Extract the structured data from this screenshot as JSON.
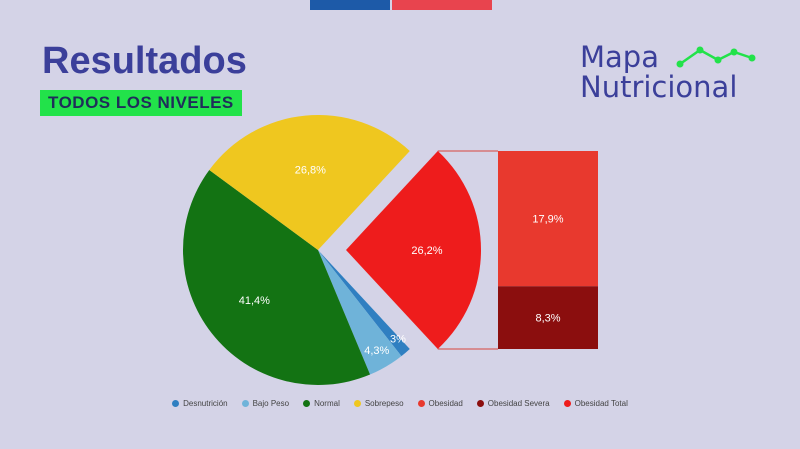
{
  "header": {
    "title": "Resultados",
    "subtitle": "TODOS LOS NIVELES"
  },
  "logo": {
    "line1": "Mapa",
    "line2": "Nutricional",
    "accent_color": "#22e24a"
  },
  "chart_data": {
    "type": "pie",
    "title": "",
    "slices": [
      {
        "name": "Desnutrición",
        "value": 1.3,
        "label": "1,3%",
        "color": "#2f7fc1"
      },
      {
        "name": "Bajo Peso",
        "value": 4.3,
        "label": "4,3%",
        "color": "#6fb3d9"
      },
      {
        "name": "Normal",
        "value": 41.4,
        "label": "41,4%",
        "color": "#137313"
      },
      {
        "name": "Sobrepeso",
        "value": 26.8,
        "label": "26,8%",
        "color": "#efc71f"
      },
      {
        "name": "Obesidad Total",
        "value": 26.2,
        "label": "26,2%",
        "color": "#ee1c1c",
        "exploded": true
      }
    ],
    "breakdown": {
      "of": "Obesidad Total",
      "segments": [
        {
          "name": "Obesidad",
          "value": 17.9,
          "label": "17,9%",
          "color": "#e8392e"
        },
        {
          "name": "Obesidad Severa",
          "value": 8.3,
          "label": "8,3%",
          "color": "#8b0e0e"
        }
      ]
    },
    "legend": [
      {
        "name": "Desnutrición",
        "color": "#2f7fc1"
      },
      {
        "name": "Bajo Peso",
        "color": "#6fb3d9"
      },
      {
        "name": "Normal",
        "color": "#137313"
      },
      {
        "name": "Sobrepeso",
        "color": "#efc71f"
      },
      {
        "name": "Obesidad",
        "color": "#e8392e"
      },
      {
        "name": "Obesidad Severa",
        "color": "#8b0e0e"
      },
      {
        "name": "Obesidad Total",
        "color": "#ee1c1c"
      }
    ],
    "legend_position": "bottom"
  }
}
